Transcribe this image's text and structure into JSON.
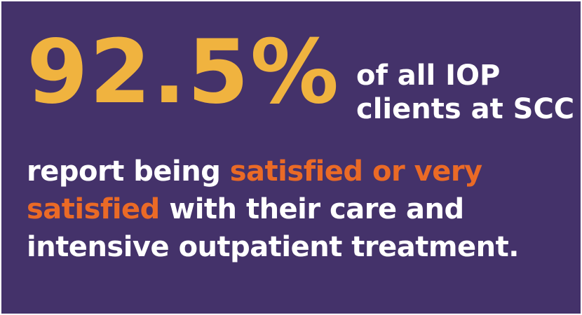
{
  "stat": {
    "value": "92.5%",
    "caption_line1": "of all IOP",
    "caption_line2": "clients at SCC"
  },
  "statement": {
    "line1_prefix": "report being ",
    "line1_highlight": "satisfied or very",
    "line2_highlight": "satisfied",
    "line2_suffix": " with their care and",
    "line3": "intensive outpatient treatment."
  },
  "colors": {
    "background": "#44326a",
    "stat_yellow": "#f0b33f",
    "highlight_orange": "#ea6a26",
    "text_white": "#ffffff"
  }
}
